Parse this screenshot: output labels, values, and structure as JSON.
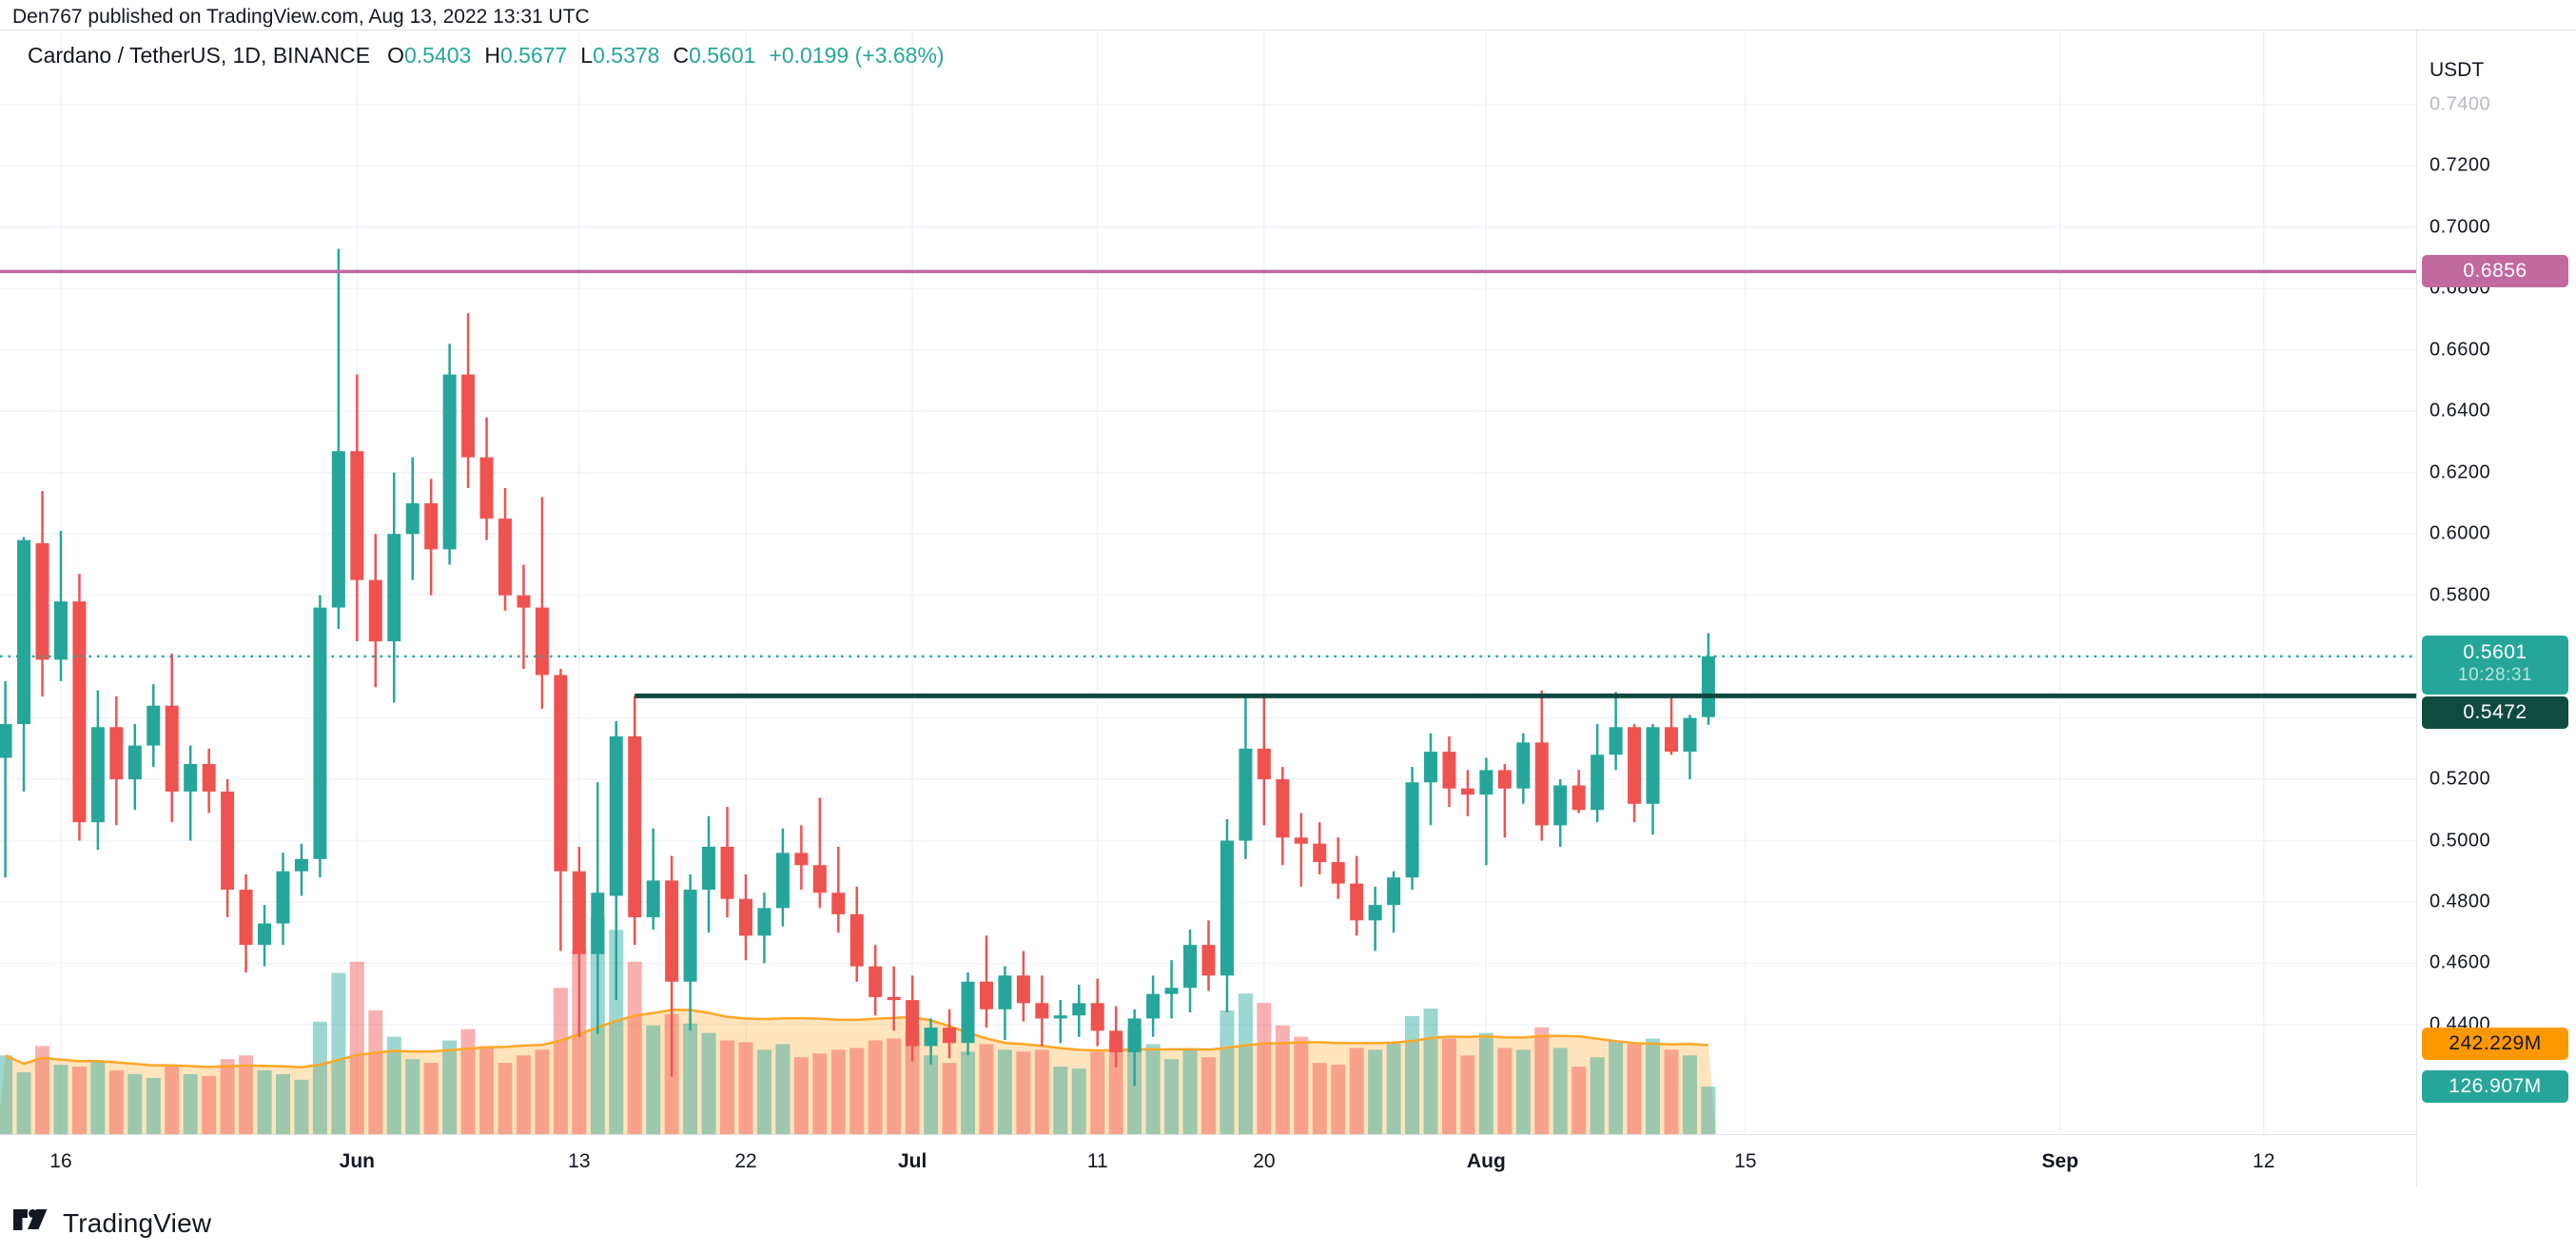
{
  "attribution": "Den767 published on TradingView.com, Aug 13, 2022 13:31 UTC",
  "legend": {
    "symbol": "Cardano / TetherUS, 1D, BINANCE",
    "open_label": "O",
    "open": "0.5403",
    "high_label": "H",
    "high": "0.5677",
    "low_label": "L",
    "low": "0.5378",
    "close_label": "C",
    "close": "0.5601",
    "change": "+0.0199 (+3.68%)"
  },
  "logo": {
    "text": "TradingView",
    "icon": "tradingview-mark"
  },
  "price_axis": {
    "currency": "USDT",
    "ticks": [
      {
        "label": "0.7400",
        "value": 0.74,
        "faded": true
      },
      {
        "label": "0.7200",
        "value": 0.72,
        "faded": false
      },
      {
        "label": "0.7000",
        "value": 0.7,
        "faded": false
      },
      {
        "label": "0.6800",
        "value": 0.68,
        "faded": false
      },
      {
        "label": "0.6600",
        "value": 0.66,
        "faded": false
      },
      {
        "label": "0.6400",
        "value": 0.64,
        "faded": false
      },
      {
        "label": "0.6200",
        "value": 0.62,
        "faded": false
      },
      {
        "label": "0.6000",
        "value": 0.6,
        "faded": false
      },
      {
        "label": "0.5800",
        "value": 0.58,
        "faded": false
      },
      {
        "label": "0.5600",
        "value": 0.56,
        "faded": false
      },
      {
        "label": "0.5400",
        "value": 0.54,
        "faded": false
      },
      {
        "label": "0.5200",
        "value": 0.52,
        "faded": false
      },
      {
        "label": "0.5000",
        "value": 0.5,
        "faded": false
      },
      {
        "label": "0.4800",
        "value": 0.48,
        "faded": false
      },
      {
        "label": "0.4600",
        "value": 0.46,
        "faded": false
      },
      {
        "label": "0.4400",
        "value": 0.44,
        "faded": false
      }
    ]
  },
  "time_axis": {
    "ticks": [
      {
        "label": "16",
        "k": 3,
        "bold": false
      },
      {
        "label": "Jun",
        "k": 19,
        "bold": true
      },
      {
        "label": "13",
        "k": 31,
        "bold": false
      },
      {
        "label": "22",
        "k": 40,
        "bold": false
      },
      {
        "label": "Jul",
        "k": 49,
        "bold": true
      },
      {
        "label": "11",
        "k": 59,
        "bold": false
      },
      {
        "label": "20",
        "k": 68,
        "bold": false
      },
      {
        "label": "Aug",
        "k": 80,
        "bold": true
      },
      {
        "label": "15",
        "k": 94,
        "bold": false
      },
      {
        "label": "Sep",
        "k": 111,
        "bold": true
      },
      {
        "label": "12",
        "k": 122,
        "bold": false
      }
    ]
  },
  "badges": {
    "resistance": {
      "label": "0.6856",
      "value": 0.6856,
      "bg": "#c2699f"
    },
    "last_price": {
      "label": "0.5601",
      "value": 0.5601,
      "countdown": "10:28:31",
      "bg": "#26a69a"
    },
    "support": {
      "label": "0.5472",
      "value": 0.5472,
      "bg": "#0f4c40"
    },
    "volume_ma": {
      "label": "242.229M",
      "value": 242.229,
      "bg": "#ff9800",
      "text": "#131722"
    },
    "volume": {
      "label": "126.907M",
      "value": 126.907,
      "bg": "#26a69a",
      "text": "#ffffff"
    }
  },
  "colors": {
    "up": "#26a69a",
    "down": "#ef5350",
    "vol_up": "rgba(38,166,154,0.45)",
    "vol_down": "rgba(239,83,80,0.45)",
    "vol_ma_line": "#ffa726",
    "vol_ma_fill": "rgba(255,167,38,0.30)",
    "grid": "#f0f3fa",
    "resistance_line": "#c2699f",
    "support_line": "#0d4a3f",
    "price_dotted_line": "#26a69a",
    "text": "#131722"
  },
  "chart_data": {
    "type": "candlestick+volume",
    "symbol": "ADAUSDT",
    "exchange": "BINANCE",
    "interval": "1D",
    "price_range": [
      0.44,
      0.74
    ],
    "grid": true,
    "levels": {
      "resistance": 0.6856,
      "support": 0.5472,
      "support_start_index": 34,
      "last_price_dotted": 0.5601
    },
    "volume_ma_period": 20,
    "candles": [
      [
        "2022-05-13",
        0.527,
        0.552,
        0.488,
        0.538,
        210
      ],
      [
        "2022-05-14",
        0.538,
        0.599,
        0.516,
        0.598,
        165
      ],
      [
        "2022-05-15",
        0.597,
        0.614,
        0.547,
        0.559,
        235
      ],
      [
        "2022-05-16",
        0.559,
        0.601,
        0.552,
        0.578,
        185
      ],
      [
        "2022-05-17",
        0.578,
        0.587,
        0.5,
        0.506,
        180
      ],
      [
        "2022-05-18",
        0.506,
        0.549,
        0.497,
        0.537,
        195
      ],
      [
        "2022-05-19",
        0.537,
        0.547,
        0.505,
        0.52,
        170
      ],
      [
        "2022-05-20",
        0.52,
        0.538,
        0.51,
        0.531,
        160
      ],
      [
        "2022-05-21",
        0.531,
        0.551,
        0.524,
        0.544,
        150
      ],
      [
        "2022-05-22",
        0.544,
        0.561,
        0.506,
        0.516,
        185
      ],
      [
        "2022-05-23",
        0.516,
        0.531,
        0.5,
        0.525,
        160
      ],
      [
        "2022-05-24",
        0.525,
        0.53,
        0.509,
        0.516,
        155
      ],
      [
        "2022-05-25",
        0.516,
        0.52,
        0.475,
        0.484,
        200
      ],
      [
        "2022-05-26",
        0.484,
        0.489,
        0.457,
        0.466,
        210
      ],
      [
        "2022-05-27",
        0.466,
        0.479,
        0.459,
        0.473,
        170
      ],
      [
        "2022-05-28",
        0.473,
        0.496,
        0.466,
        0.49,
        160
      ],
      [
        "2022-05-29",
        0.49,
        0.499,
        0.482,
        0.494,
        145
      ],
      [
        "2022-05-30",
        0.494,
        0.58,
        0.488,
        0.576,
        300
      ],
      [
        "2022-05-31",
        0.576,
        0.693,
        0.569,
        0.627,
        430
      ],
      [
        "2022-06-01",
        0.627,
        0.652,
        0.565,
        0.585,
        460
      ],
      [
        "2022-06-02",
        0.585,
        0.6,
        0.55,
        0.565,
        330
      ],
      [
        "2022-06-03",
        0.565,
        0.62,
        0.545,
        0.6,
        260
      ],
      [
        "2022-06-04",
        0.6,
        0.625,
        0.585,
        0.61,
        200
      ],
      [
        "2022-06-05",
        0.61,
        0.618,
        0.58,
        0.595,
        190
      ],
      [
        "2022-06-06",
        0.595,
        0.662,
        0.59,
        0.652,
        250
      ],
      [
        "2022-06-07",
        0.652,
        0.672,
        0.615,
        0.625,
        280
      ],
      [
        "2022-06-08",
        0.625,
        0.638,
        0.598,
        0.605,
        235
      ],
      [
        "2022-06-09",
        0.605,
        0.615,
        0.575,
        0.58,
        190
      ],
      [
        "2022-06-10",
        0.58,
        0.59,
        0.556,
        0.576,
        210
      ],
      [
        "2022-06-11",
        0.576,
        0.612,
        0.543,
        0.554,
        225
      ],
      [
        "2022-06-12",
        0.554,
        0.556,
        0.464,
        0.49,
        390
      ],
      [
        "2022-06-13",
        0.49,
        0.498,
        0.436,
        0.463,
        490
      ],
      [
        "2022-06-14",
        0.463,
        0.519,
        0.437,
        0.483,
        575
      ],
      [
        "2022-06-15",
        0.482,
        0.539,
        0.448,
        0.534,
        545
      ],
      [
        "2022-06-16",
        0.534,
        0.5472,
        0.466,
        0.475,
        460
      ],
      [
        "2022-06-17",
        0.475,
        0.504,
        0.471,
        0.487,
        290
      ],
      [
        "2022-06-18",
        0.487,
        0.495,
        0.423,
        0.454,
        320
      ],
      [
        "2022-06-19",
        0.454,
        0.489,
        0.438,
        0.484,
        295
      ],
      [
        "2022-06-20",
        0.484,
        0.508,
        0.47,
        0.498,
        270
      ],
      [
        "2022-06-21",
        0.498,
        0.511,
        0.475,
        0.481,
        250
      ],
      [
        "2022-06-22",
        0.481,
        0.489,
        0.461,
        0.469,
        245
      ],
      [
        "2022-06-23",
        0.469,
        0.483,
        0.46,
        0.478,
        225
      ],
      [
        "2022-06-24",
        0.478,
        0.504,
        0.472,
        0.496,
        240
      ],
      [
        "2022-06-25",
        0.496,
        0.505,
        0.484,
        0.492,
        205
      ],
      [
        "2022-06-26",
        0.492,
        0.514,
        0.478,
        0.483,
        215
      ],
      [
        "2022-06-27",
        0.483,
        0.498,
        0.47,
        0.476,
        225
      ],
      [
        "2022-06-28",
        0.476,
        0.485,
        0.454,
        0.459,
        230
      ],
      [
        "2022-06-29",
        0.459,
        0.466,
        0.443,
        0.449,
        250
      ],
      [
        "2022-06-30",
        0.449,
        0.459,
        0.438,
        0.448,
        255
      ],
      [
        "2022-07-01",
        0.448,
        0.456,
        0.428,
        0.433,
        270
      ],
      [
        "2022-07-02",
        0.433,
        0.442,
        0.427,
        0.439,
        210
      ],
      [
        "2022-07-03",
        0.439,
        0.445,
        0.429,
        0.434,
        190
      ],
      [
        "2022-07-04",
        0.434,
        0.457,
        0.43,
        0.454,
        220
      ],
      [
        "2022-07-05",
        0.454,
        0.469,
        0.439,
        0.445,
        240
      ],
      [
        "2022-07-06",
        0.445,
        0.459,
        0.435,
        0.456,
        225
      ],
      [
        "2022-07-07",
        0.456,
        0.464,
        0.441,
        0.447,
        220
      ],
      [
        "2022-07-08",
        0.447,
        0.456,
        0.433,
        0.442,
        225
      ],
      [
        "2022-07-09",
        0.442,
        0.448,
        0.434,
        0.443,
        180
      ],
      [
        "2022-07-10",
        0.443,
        0.453,
        0.436,
        0.447,
        175
      ],
      [
        "2022-07-11",
        0.447,
        0.455,
        0.433,
        0.438,
        220
      ],
      [
        "2022-07-12",
        0.438,
        0.446,
        0.426,
        0.431,
        250
      ],
      [
        "2022-07-13",
        0.431,
        0.445,
        0.42,
        0.442,
        280
      ],
      [
        "2022-07-14",
        0.442,
        0.456,
        0.436,
        0.45,
        240
      ],
      [
        "2022-07-15",
        0.45,
        0.461,
        0.442,
        0.452,
        200
      ],
      [
        "2022-07-16",
        0.452,
        0.471,
        0.444,
        0.466,
        225
      ],
      [
        "2022-07-17",
        0.466,
        0.474,
        0.451,
        0.456,
        205
      ],
      [
        "2022-07-18",
        0.456,
        0.507,
        0.444,
        0.5,
        330
      ],
      [
        "2022-07-19",
        0.5,
        0.5478,
        0.494,
        0.53,
        375
      ],
      [
        "2022-07-20",
        0.53,
        0.547,
        0.505,
        0.52,
        350
      ],
      [
        "2022-07-21",
        0.52,
        0.524,
        0.492,
        0.501,
        290
      ],
      [
        "2022-07-22",
        0.501,
        0.509,
        0.485,
        0.499,
        260
      ],
      [
        "2022-07-23",
        0.499,
        0.506,
        0.489,
        0.493,
        190
      ],
      [
        "2022-07-24",
        0.493,
        0.501,
        0.481,
        0.486,
        185
      ],
      [
        "2022-07-25",
        0.486,
        0.495,
        0.469,
        0.474,
        230
      ],
      [
        "2022-07-26",
        0.474,
        0.485,
        0.464,
        0.479,
        225
      ],
      [
        "2022-07-27",
        0.479,
        0.49,
        0.47,
        0.488,
        245
      ],
      [
        "2022-07-28",
        0.488,
        0.524,
        0.484,
        0.519,
        315
      ],
      [
        "2022-07-29",
        0.519,
        0.535,
        0.505,
        0.529,
        335
      ],
      [
        "2022-07-30",
        0.529,
        0.534,
        0.511,
        0.517,
        255
      ],
      [
        "2022-07-31",
        0.517,
        0.523,
        0.508,
        0.515,
        210
      ],
      [
        "2022-08-01",
        0.515,
        0.527,
        0.492,
        0.523,
        270
      ],
      [
        "2022-08-02",
        0.523,
        0.525,
        0.501,
        0.517,
        230
      ],
      [
        "2022-08-03",
        0.517,
        0.535,
        0.512,
        0.532,
        225
      ],
      [
        "2022-08-04",
        0.532,
        0.549,
        0.5,
        0.505,
        285
      ],
      [
        "2022-08-05",
        0.505,
        0.52,
        0.498,
        0.518,
        230
      ],
      [
        "2022-08-06",
        0.518,
        0.523,
        0.509,
        0.51,
        180
      ],
      [
        "2022-08-07",
        0.51,
        0.538,
        0.506,
        0.528,
        205
      ],
      [
        "2022-08-08",
        0.528,
        0.5485,
        0.523,
        0.537,
        250
      ],
      [
        "2022-08-09",
        0.537,
        0.538,
        0.506,
        0.512,
        240
      ],
      [
        "2022-08-10",
        0.512,
        0.538,
        0.502,
        0.537,
        255
      ],
      [
        "2022-08-11",
        0.537,
        0.5465,
        0.528,
        0.529,
        225
      ],
      [
        "2022-08-12",
        0.529,
        0.541,
        0.52,
        0.54,
        210
      ],
      [
        "2022-08-13",
        0.5403,
        0.5677,
        0.5378,
        0.5601,
        126.907
      ]
    ]
  }
}
